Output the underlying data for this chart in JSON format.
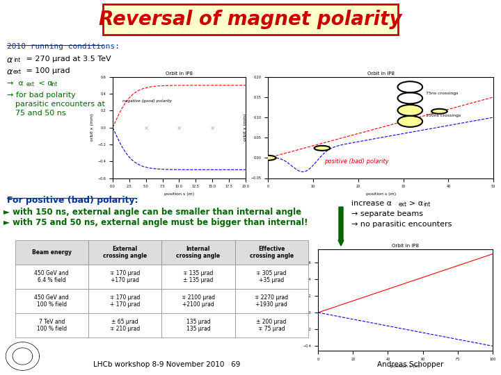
{
  "title": "Reversal of magnet polarity",
  "title_color": "#cc0000",
  "title_bg": "#ffffcc",
  "title_border": "#cc0000",
  "bg_color": "#ffffff",
  "heading": "2010 running conditions:",
  "mid_left_label": "negative (good) polarity",
  "mid_right_label": "positive (bad) polarity",
  "legend_75": "75ns crossings",
  "legend_150": "150ns crossings",
  "bottom_left_heading": "For positive (bad) polarity:",
  "bottom_line1": "Ø with 150 ns, external angle can be smaller than internal angle",
  "bottom_line2": "Ø with 75 and 50 ns, external angle must be bigger than internal!",
  "footer_left": "LHCb workshop 8-9 November 2010   69",
  "footer_right": "Andreas Schopper",
  "table_col_labels": [
    "Beam energy",
    "External\ncrossing angle",
    "Internal\ncrossing angle",
    "Effective\ncrossing angle"
  ],
  "table_rows": [
    [
      "450 GeV and\n6.4 % field",
      "∓ 170 μrad\n+170 μrad",
      "∓ 135 μrad\n± 135 μrad",
      "∓ 305 μrad\n+35 μrad"
    ],
    [
      "450 GeV and\n100 % field",
      "∓ 170 μrad\n+ 170 μrad",
      "∓ 2100 μrad\n+2100 μrad",
      "∓ 2270 μrad\n+1930 μrad"
    ],
    [
      "7 TeV and\n100 % field",
      "± 65 μrad\n∓ 210 μrad",
      "135 μrad\n135 μrad",
      "± 200 μrad\n∓ 75 μrad"
    ]
  ]
}
